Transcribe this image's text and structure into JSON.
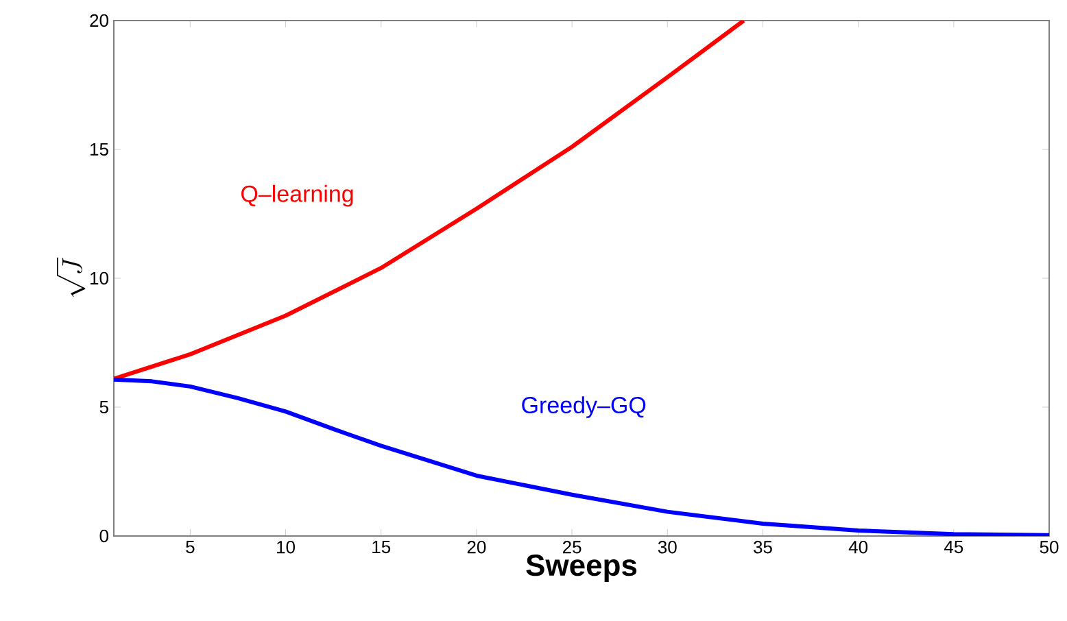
{
  "chart_data": {
    "type": "line",
    "xlabel": "Sweeps",
    "ylabel": "\\sqrt{J}",
    "xlim": [
      1,
      50
    ],
    "ylim": [
      0,
      20
    ],
    "xticks": [
      5,
      10,
      15,
      20,
      25,
      30,
      35,
      40,
      45,
      50
    ],
    "yticks": [
      0,
      5,
      10,
      15,
      20
    ],
    "series": [
      {
        "name": "Q–learning",
        "color": "#ff0000",
        "x": [
          1,
          5,
          10,
          15,
          20,
          25,
          30,
          34
        ],
        "values": [
          6.1,
          7.05,
          8.55,
          10.4,
          12.7,
          15.1,
          17.8,
          20
        ]
      },
      {
        "name": "Greedy–GQ",
        "color": "#0000ff",
        "x": [
          1,
          3,
          5,
          7.5,
          10,
          12.5,
          15,
          20,
          25,
          30,
          35,
          40,
          45,
          50
        ],
        "values": [
          6.07,
          6.0,
          5.8,
          5.35,
          4.83,
          4.15,
          3.5,
          2.34,
          1.6,
          0.94,
          0.48,
          0.21,
          0.07,
          0.03
        ]
      }
    ]
  }
}
